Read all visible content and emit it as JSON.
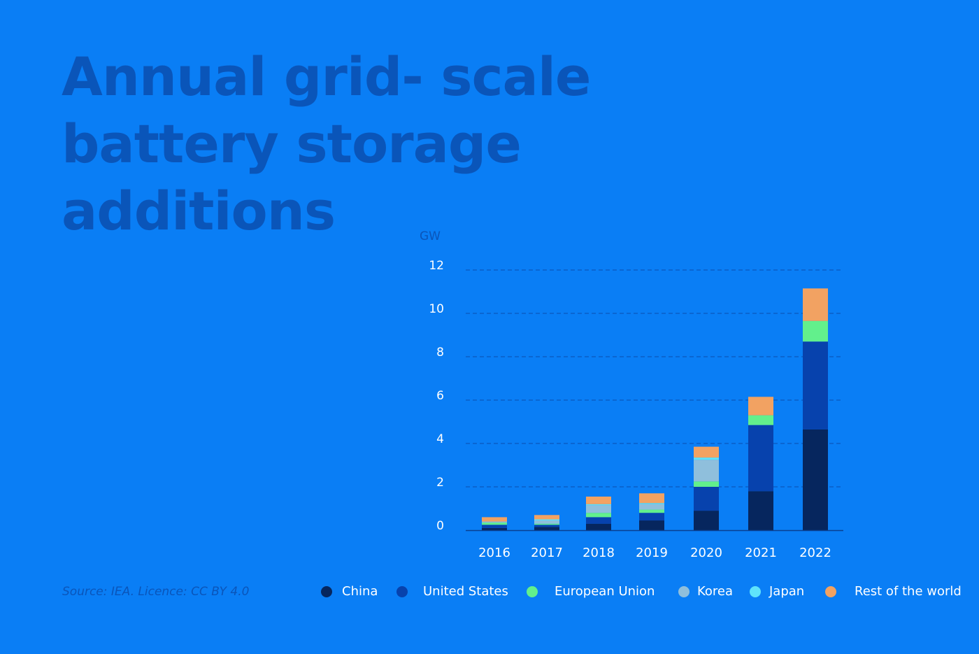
{
  "title": "Annual grid- scale battery storage additions",
  "source": "Source: IEA. Licence: CC BY 4.0",
  "colors": {
    "background": "#0a7ef5",
    "title": "#0a55b9",
    "axis_text": "#ffffff",
    "gridline": "#0a4fb0"
  },
  "chart_data": {
    "type": "bar",
    "stacked": true,
    "title": "",
    "xlabel": "",
    "ylabel": "GW",
    "ylim": [
      0,
      12
    ],
    "yticks": [
      0,
      2,
      4,
      6,
      8,
      10,
      12
    ],
    "grid": true,
    "legend_position": "bottom",
    "categories": [
      "2016",
      "2017",
      "2018",
      "2019",
      "2020",
      "2021",
      "2022"
    ],
    "series": [
      {
        "name": "China",
        "color": "#06265e",
        "values": [
          0.1,
          0.15,
          0.3,
          0.45,
          0.9,
          1.8,
          4.65
        ]
      },
      {
        "name": "United States",
        "color": "#0742ad",
        "values": [
          0.15,
          0.1,
          0.3,
          0.35,
          1.1,
          3.05,
          4.05
        ]
      },
      {
        "name": "European Union",
        "color": "#62f08c",
        "values": [
          0.1,
          0.05,
          0.2,
          0.15,
          0.25,
          0.45,
          0.95
        ]
      },
      {
        "name": "Korea",
        "color": "#8fbfdc",
        "values": [
          0.05,
          0.15,
          0.35,
          0.25,
          1.0,
          0.0,
          0.0
        ]
      },
      {
        "name": "Japan",
        "color": "#5fe3fb",
        "values": [
          0.0,
          0.05,
          0.05,
          0.05,
          0.1,
          0.0,
          0.0
        ]
      },
      {
        "name": "Rest of the world",
        "color": "#f2a262",
        "values": [
          0.2,
          0.2,
          0.35,
          0.45,
          0.5,
          0.85,
          1.5
        ]
      }
    ]
  }
}
